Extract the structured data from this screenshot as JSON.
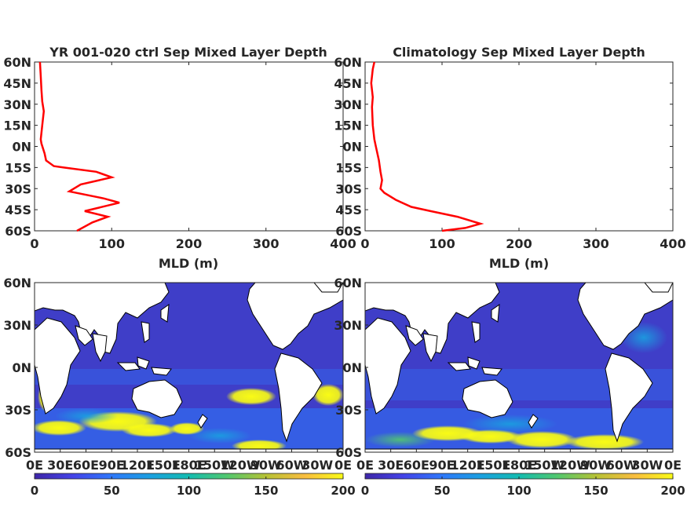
{
  "colors": {
    "line": "#ff0000",
    "axis": "#262626",
    "land": "#ffffff",
    "colormap": [
      "#3e26a8",
      "#4443e8",
      "#2e78fb",
      "#1aa0e0",
      "#13bcb0",
      "#52c86e",
      "#b6c235",
      "#f9bd3f",
      "#f9fb15"
    ]
  },
  "profile_xticks": [
    "0",
    "100",
    "200",
    "300",
    "400"
  ],
  "profile_yticks": [
    "60N",
    "45N",
    "30N",
    "15N",
    "0N",
    "15S",
    "30S",
    "45S",
    "60S"
  ],
  "map_yticks": [
    "60N",
    "30N",
    "0N",
    "30S",
    "60S"
  ],
  "map_xticks": [
    "0E",
    "30E",
    "60E",
    "90E",
    "120E",
    "150E",
    "180E",
    "150W",
    "120W",
    "90W",
    "60W",
    "30W",
    "0E"
  ],
  "colorbar_ticks": [
    "0",
    "50",
    "100",
    "150",
    "200"
  ],
  "chart_data": [
    {
      "type": "line",
      "title": "YR 001-020 ctrl Sep Mixed Layer Depth",
      "xlabel": "MLD (m)",
      "ylabel": "",
      "xlim": [
        0,
        400
      ],
      "ylim": [
        -60,
        60
      ],
      "grid": false,
      "series": [
        {
          "x": [
            7,
            8,
            9,
            10,
            12,
            10,
            8,
            9,
            13,
            15,
            25,
            38,
            80,
            100,
            60,
            45,
            90,
            110,
            65,
            95,
            75,
            55
          ],
          "y": [
            60,
            50,
            40,
            32,
            25,
            15,
            5,
            2,
            -5,
            -10,
            -14,
            -15,
            -18,
            -22,
            -27,
            -32,
            -37,
            -40,
            -46,
            -50,
            -54,
            -60
          ]
        }
      ]
    },
    {
      "type": "line",
      "title": "Climatology Sep Mixed Layer Depth",
      "xlabel": "MLD (m)",
      "ylabel": "",
      "xlim": [
        0,
        400
      ],
      "ylim": [
        -60,
        60
      ],
      "grid": false,
      "series": [
        {
          "x": [
            12,
            10,
            8,
            10,
            9,
            10,
            12,
            14,
            18,
            20,
            22,
            20,
            25,
            40,
            60,
            85,
            120,
            150,
            130,
            100
          ],
          "y": [
            60,
            55,
            45,
            35,
            28,
            15,
            5,
            0,
            -10,
            -18,
            -24,
            -30,
            -33,
            -38,
            -43,
            -46,
            -50,
            -55,
            -58,
            -60
          ]
        }
      ]
    },
    {
      "type": "heatmap",
      "title": "",
      "x_range": [
        "0E",
        "0E"
      ],
      "y_range": [
        "60S",
        "60N"
      ],
      "colorbar_range": [
        0,
        200
      ],
      "description_values": "Sep mixed layer depth, model ctrl"
    },
    {
      "type": "heatmap",
      "title": "",
      "x_range": [
        "0E",
        "0E"
      ],
      "y_range": [
        "60S",
        "60N"
      ],
      "colorbar_range": [
        0,
        200
      ],
      "description_values": "Sep mixed layer depth, climatology"
    }
  ]
}
